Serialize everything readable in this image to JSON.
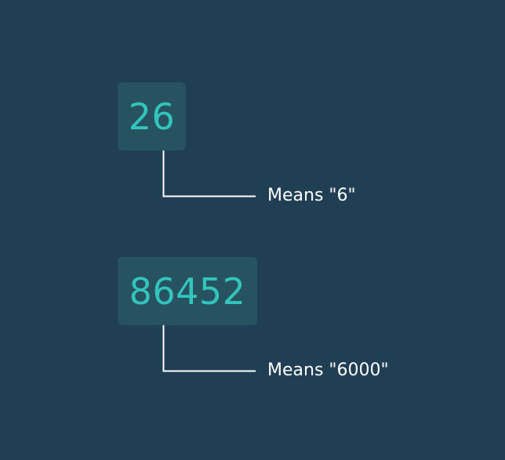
{
  "examples": [
    {
      "number": "26",
      "annotation": "Means \"6\""
    },
    {
      "number": "86452",
      "annotation": "Means \"6000\""
    }
  ],
  "colors": {
    "background": "#213f54",
    "box": "#26535f",
    "digits": "#33c4bd",
    "connector": "#ffffff",
    "annotation_text": "#ffffff"
  }
}
